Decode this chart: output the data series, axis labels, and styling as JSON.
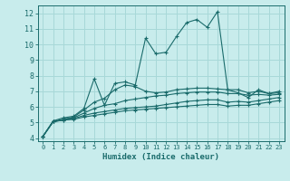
{
  "xlabel": "Humidex (Indice chaleur)",
  "bg_color": "#c8ecec",
  "grid_color": "#a8d8d8",
  "line_color": "#1a6b6b",
  "xlim": [
    -0.5,
    23.5
  ],
  "ylim": [
    3.8,
    12.5
  ],
  "xticks": [
    0,
    1,
    2,
    3,
    4,
    5,
    6,
    7,
    8,
    9,
    10,
    11,
    12,
    13,
    14,
    15,
    16,
    17,
    18,
    19,
    20,
    21,
    22,
    23
  ],
  "yticks": [
    4,
    5,
    6,
    7,
    8,
    9,
    10,
    11,
    12
  ],
  "series": [
    [
      4.1,
      5.1,
      5.3,
      5.4,
      5.9,
      7.8,
      6.1,
      7.5,
      7.6,
      7.4,
      10.4,
      9.4,
      9.5,
      10.5,
      11.4,
      11.6,
      11.1,
      12.1,
      7.1,
      6.9,
      6.6,
      7.1,
      6.85,
      7.0
    ],
    [
      4.1,
      5.05,
      5.2,
      5.35,
      5.8,
      6.3,
      6.55,
      7.1,
      7.4,
      7.3,
      7.0,
      6.9,
      6.95,
      7.1,
      7.15,
      7.2,
      7.2,
      7.15,
      7.1,
      7.1,
      6.9,
      7.0,
      6.85,
      6.9
    ],
    [
      4.1,
      5.05,
      5.2,
      5.3,
      5.6,
      5.9,
      6.1,
      6.2,
      6.4,
      6.5,
      6.6,
      6.7,
      6.75,
      6.85,
      6.9,
      6.95,
      6.95,
      6.95,
      6.85,
      6.85,
      6.75,
      6.8,
      6.75,
      6.8
    ],
    [
      4.1,
      5.05,
      5.15,
      5.25,
      5.45,
      5.6,
      5.7,
      5.8,
      5.9,
      5.95,
      6.0,
      6.05,
      6.15,
      6.25,
      6.35,
      6.4,
      6.45,
      6.45,
      6.3,
      6.35,
      6.3,
      6.4,
      6.5,
      6.6
    ],
    [
      4.1,
      5.05,
      5.15,
      5.2,
      5.35,
      5.45,
      5.55,
      5.65,
      5.75,
      5.8,
      5.85,
      5.9,
      5.95,
      6.0,
      6.05,
      6.1,
      6.15,
      6.15,
      6.05,
      6.1,
      6.1,
      6.2,
      6.3,
      6.4
    ]
  ]
}
